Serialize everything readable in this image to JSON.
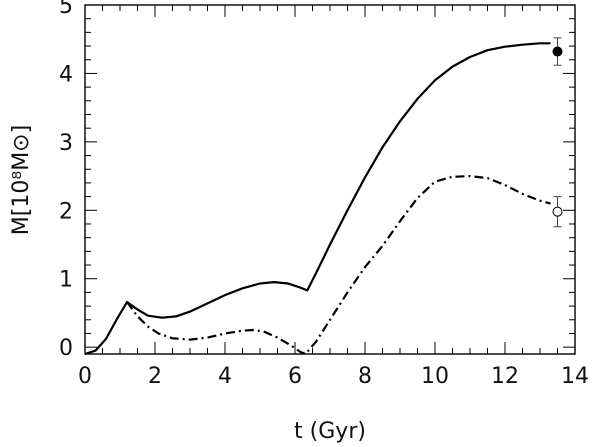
{
  "chart_data": {
    "type": "line",
    "xlabel": "t (Gyr)",
    "ylabel": "M[10⁸M⊙]",
    "xlim": [
      0,
      14
    ],
    "ylim": [
      -0.1,
      5.0
    ],
    "x_ticks": [
      0,
      2,
      4,
      6,
      8,
      10,
      12,
      14
    ],
    "y_ticks": [
      0,
      1,
      2,
      3,
      4,
      5
    ],
    "x_minor_step": 0.5,
    "y_minor_step": 0.2,
    "grid": false,
    "legend": "none",
    "series": [
      {
        "style": "solid",
        "color": "#000000",
        "points": [
          [
            0,
            -0.1
          ],
          [
            0.3,
            -0.05
          ],
          [
            0.6,
            0.12
          ],
          [
            0.9,
            0.4
          ],
          [
            1.2,
            0.66
          ],
          [
            1.5,
            0.55
          ],
          [
            1.8,
            0.46
          ],
          [
            2.2,
            0.43
          ],
          [
            2.6,
            0.45
          ],
          [
            3.0,
            0.52
          ],
          [
            3.5,
            0.64
          ],
          [
            4.0,
            0.76
          ],
          [
            4.5,
            0.86
          ],
          [
            5.0,
            0.93
          ],
          [
            5.4,
            0.95
          ],
          [
            5.8,
            0.93
          ],
          [
            6.1,
            0.88
          ],
          [
            6.35,
            0.83
          ],
          [
            6.6,
            1.08
          ],
          [
            7.0,
            1.5
          ],
          [
            7.5,
            2.0
          ],
          [
            8.0,
            2.48
          ],
          [
            8.5,
            2.92
          ],
          [
            9.0,
            3.3
          ],
          [
            9.5,
            3.63
          ],
          [
            10.0,
            3.9
          ],
          [
            10.5,
            4.1
          ],
          [
            11.0,
            4.24
          ],
          [
            11.5,
            4.34
          ],
          [
            12.0,
            4.39
          ],
          [
            12.5,
            4.42
          ],
          [
            13.0,
            4.44
          ],
          [
            13.3,
            4.44
          ]
        ]
      },
      {
        "style": "dash-dot",
        "color": "#000000",
        "points": [
          [
            1.2,
            0.66
          ],
          [
            1.5,
            0.45
          ],
          [
            1.8,
            0.3
          ],
          [
            2.1,
            0.2
          ],
          [
            2.5,
            0.13
          ],
          [
            3.0,
            0.11
          ],
          [
            3.5,
            0.14
          ],
          [
            4.0,
            0.2
          ],
          [
            4.5,
            0.24
          ],
          [
            4.8,
            0.25
          ],
          [
            5.1,
            0.23
          ],
          [
            5.5,
            0.14
          ],
          [
            5.9,
            0.02
          ],
          [
            6.15,
            -0.07
          ],
          [
            6.3,
            -0.1
          ],
          [
            6.6,
            0.08
          ],
          [
            7.0,
            0.4
          ],
          [
            7.5,
            0.8
          ],
          [
            8.0,
            1.17
          ],
          [
            8.5,
            1.48
          ],
          [
            9.0,
            1.84
          ],
          [
            9.5,
            2.18
          ],
          [
            10.0,
            2.42
          ],
          [
            10.5,
            2.49
          ],
          [
            11.0,
            2.5
          ],
          [
            11.5,
            2.47
          ],
          [
            12.0,
            2.37
          ],
          [
            12.5,
            2.24
          ],
          [
            13.0,
            2.14
          ],
          [
            13.3,
            2.1
          ]
        ]
      }
    ],
    "markers": [
      {
        "x": 13.5,
        "y": 4.32,
        "err": 0.2,
        "filled": true
      },
      {
        "x": 13.5,
        "y": 1.98,
        "err": 0.22,
        "filled": false
      }
    ]
  }
}
